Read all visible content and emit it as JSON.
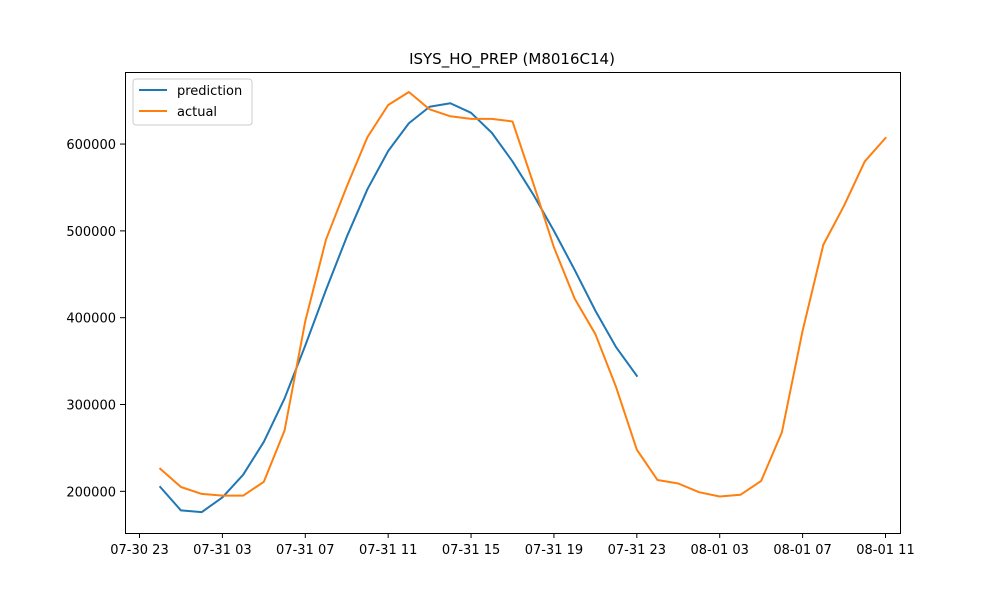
{
  "chart_data": {
    "type": "line",
    "title": "ISYS_HO_PREP (M8016C14)",
    "xlabel": "",
    "ylabel": "",
    "grid": false,
    "legend_position": "top-left",
    "x_ticks": [
      "07-30 23",
      "07-31 03",
      "07-31 07",
      "07-31 11",
      "07-31 15",
      "07-31 19",
      "07-31 23",
      "08-01 03",
      "08-01 07",
      "08-01 11"
    ],
    "y_ticks": [
      "200000",
      "300000",
      "400000",
      "500000",
      "600000"
    ],
    "ylim": [
      152000,
      683000
    ],
    "xlim": [
      "07-30 22:18",
      "08-01 11:42"
    ],
    "series": [
      {
        "name": "prediction",
        "color": "#1f77b4",
        "x": [
          "07-31 00",
          "07-31 01",
          "07-31 02",
          "07-31 03",
          "07-31 04",
          "07-31 05",
          "07-31 06",
          "07-31 07",
          "07-31 08",
          "07-31 09",
          "07-31 10",
          "07-31 11",
          "07-31 12",
          "07-31 13",
          "07-31 14",
          "07-31 15",
          "07-31 16",
          "07-31 17",
          "07-31 18",
          "07-31 19",
          "07-31 20",
          "07-31 21",
          "07-31 22",
          "07-31 23"
        ],
        "y": [
          205000,
          178000,
          176000,
          193000,
          219000,
          257000,
          307000,
          368000,
          432000,
          493000,
          548000,
          592000,
          624000,
          643000,
          647000,
          636000,
          613000,
          580000,
          542000,
          500000,
          455000,
          408000,
          366000,
          333000
        ]
      },
      {
        "name": "actual",
        "color": "#ff7f0e",
        "x": [
          "07-31 00",
          "07-31 01",
          "07-31 02",
          "07-31 03",
          "07-31 04",
          "07-31 05",
          "07-31 06",
          "07-31 07",
          "07-31 08",
          "07-31 09",
          "07-31 10",
          "07-31 11",
          "07-31 12",
          "07-31 13",
          "07-31 14",
          "07-31 15",
          "07-31 16",
          "07-31 17",
          "07-31 18",
          "07-31 19",
          "07-31 20",
          "07-31 21",
          "07-31 22",
          "07-31 23",
          "08-01 00",
          "08-01 01",
          "08-01 02",
          "08-01 03",
          "08-01 04",
          "08-01 05",
          "08-01 06",
          "08-01 07",
          "08-01 08",
          "08-01 09",
          "08-01 10",
          "08-01 11"
        ],
        "y": [
          226000,
          205000,
          197000,
          195000,
          195000,
          211000,
          270000,
          396000,
          490000,
          551000,
          608000,
          645000,
          660000,
          640000,
          632000,
          629000,
          629000,
          626000,
          555000,
          481000,
          422000,
          381000,
          320000,
          248000,
          213000,
          209000,
          199000,
          194000,
          196000,
          212000,
          268000,
          385000,
          484000,
          529000,
          580000,
          607000
        ]
      }
    ]
  }
}
